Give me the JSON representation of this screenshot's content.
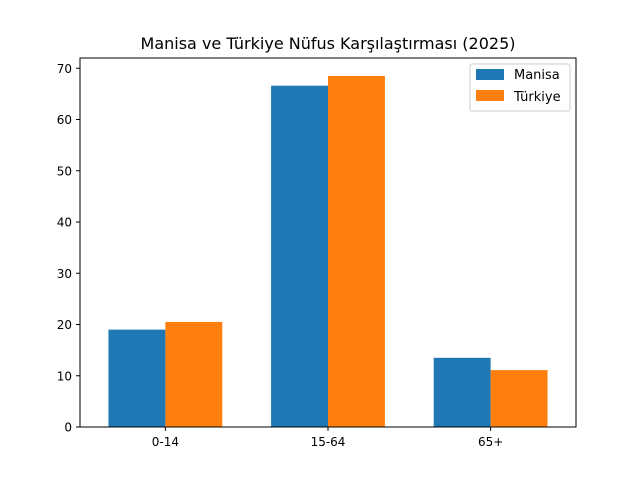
{
  "chart_data": {
    "type": "bar",
    "title": "Manisa ve Türkiye Nüfus Karşılaştırması (2025)",
    "xlabel": "",
    "ylabel": "",
    "categories": [
      "0-14",
      "15-64",
      "65+"
    ],
    "series": [
      {
        "name": "Manisa",
        "values": [
          19.0,
          66.6,
          13.5
        ],
        "color": "#1f77b4"
      },
      {
        "name": "Türkiye",
        "values": [
          20.5,
          68.5,
          11.1
        ],
        "color": "#ff7f0e"
      }
    ],
    "ylim": [
      0,
      72
    ],
    "yticks": [
      "0",
      "10",
      "20",
      "30",
      "40",
      "50",
      "60",
      "70"
    ],
    "legend": "top-right",
    "grid": false
  }
}
